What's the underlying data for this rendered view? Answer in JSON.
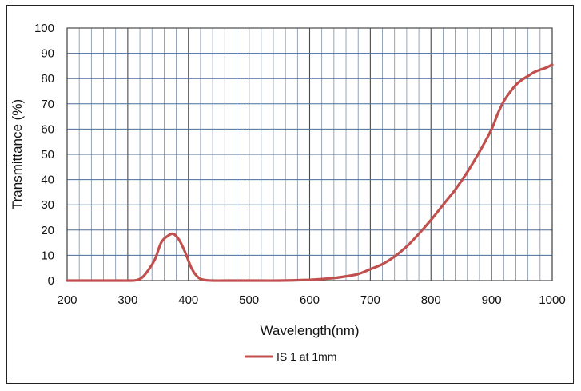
{
  "chart_data": {
    "type": "line",
    "title": "",
    "xlabel": "Wavelength(nm)",
    "ylabel": "Transmittance (%)",
    "xlim": [
      200,
      1000
    ],
    "ylim": [
      0,
      100
    ],
    "x_ticks": [
      "200",
      "300",
      "400",
      "500",
      "600",
      "700",
      "800",
      "900",
      "1000"
    ],
    "y_ticks": [
      "0",
      "10",
      "20",
      "30",
      "40",
      "50",
      "60",
      "70",
      "80",
      "90",
      "100"
    ],
    "grid": true,
    "legend_position": "bottom",
    "series": [
      {
        "name": "IS 1 at 1mm",
        "color": "#c0504d",
        "x": [
          200,
          250,
          300,
          315,
          325,
          335,
          345,
          355,
          365,
          375,
          385,
          395,
          405,
          415,
          425,
          440,
          460,
          500,
          550,
          600,
          620,
          640,
          660,
          680,
          700,
          720,
          740,
          760,
          780,
          800,
          820,
          840,
          860,
          880,
          900,
          910,
          920,
          930,
          940,
          950,
          960,
          970,
          980,
          990,
          1000
        ],
        "y": [
          0,
          0,
          0,
          0.2,
          1.5,
          4.5,
          8.5,
          15,
          17.5,
          18.5,
          16,
          11,
          5,
          1.5,
          0.3,
          0,
          0,
          0,
          0,
          0.3,
          0.6,
          1,
          1.7,
          2.6,
          4.5,
          6.5,
          9.5,
          13.5,
          18.5,
          24,
          30,
          36,
          43,
          51,
          60,
          66,
          71,
          74.5,
          77.5,
          79.5,
          81,
          82.5,
          83.5,
          84.3,
          85.5
        ]
      }
    ]
  }
}
